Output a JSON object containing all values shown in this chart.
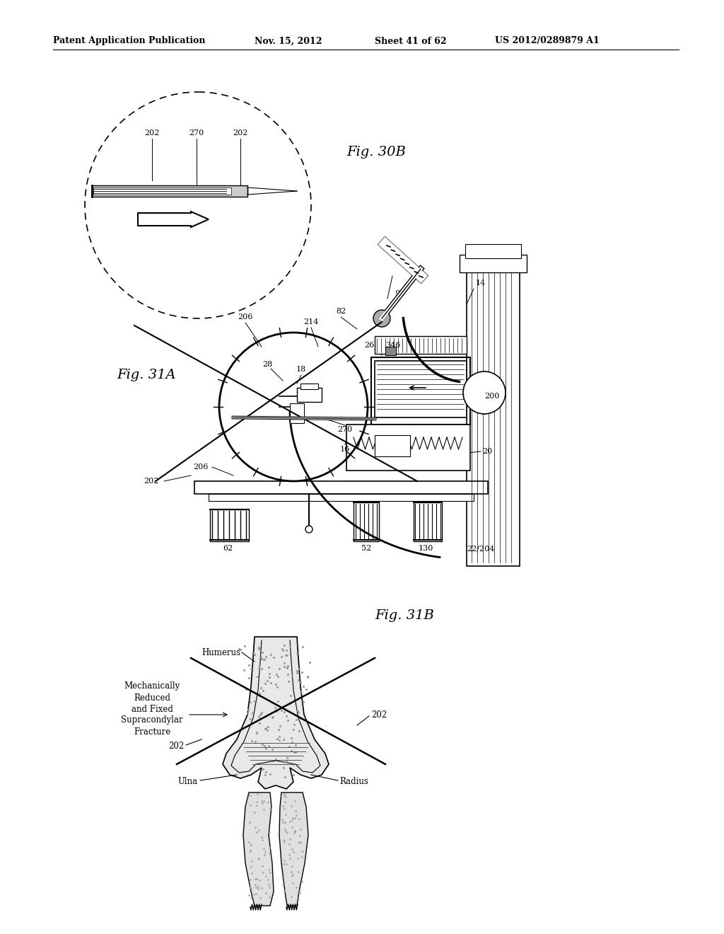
{
  "bg_color": "#ffffff",
  "line_color": "#000000",
  "text_color": "#000000",
  "header_text": "Patent Application Publication",
  "header_date": "Nov. 15, 2012",
  "header_sheet": "Sheet 41 of 62",
  "header_patent": "US 2012/0289879 A1",
  "fig30b_label": "Fig. 30B",
  "fig31a_label": "Fig. 31A",
  "fig31b_label": "Fig. 31B"
}
